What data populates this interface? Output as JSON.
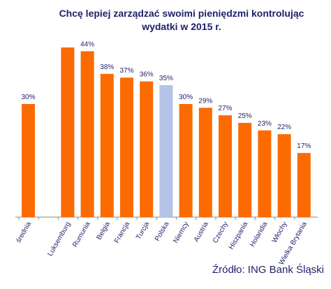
{
  "chart_data": {
    "type": "bar",
    "title": "Chcę lepiej zarządzać swoimi pieniędzmi kontrolując wydatki w 2015 r.",
    "categories": [
      "średnia",
      "",
      "Luksemburg",
      "Rumunia",
      "Belgia",
      "Francja",
      "Turcja",
      "Polska",
      "Niemcy",
      "Austria",
      "Czechy",
      "Hiszpania",
      "Holandia",
      "Włochy",
      "Wielka Brytania"
    ],
    "values": [
      30,
      null,
      45,
      44,
      38,
      37,
      36,
      35,
      30,
      29,
      27,
      25,
      23,
      22,
      17
    ],
    "data_labels": [
      "30%",
      "",
      "",
      "44%",
      "38%",
      "37%",
      "36%",
      "35%",
      "30%",
      "29%",
      "27%",
      "25%",
      "23%",
      "22%",
      "17%"
    ],
    "highlight_category": "Polska",
    "colors": {
      "bar": "#fb6b01",
      "highlight": "#b3c4e6",
      "text": "#1f1f6b",
      "axis": "#8a8a8a"
    },
    "ylim": [
      0,
      45
    ],
    "grid": false,
    "legend": "none",
    "xlabel": "",
    "ylabel": ""
  },
  "source": "Źródło: ING Bank Śląski"
}
